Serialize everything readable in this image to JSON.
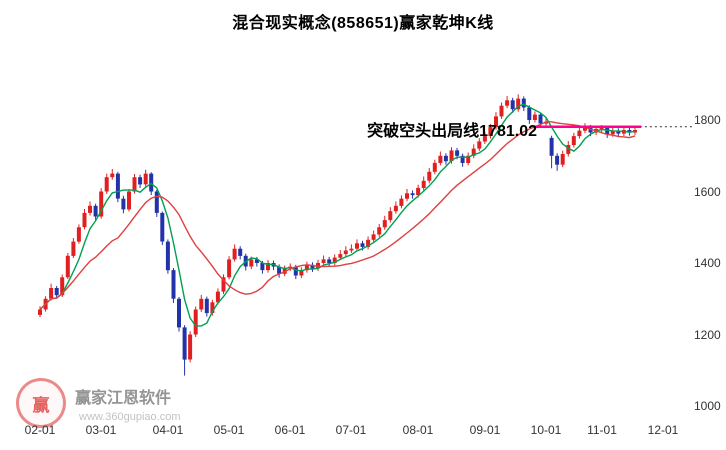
{
  "title": "混合现实概念(858651)赢家乾坤K线",
  "annotation": {
    "text": "突破空头出局线1781.02"
  },
  "watermark": {
    "logo_char": "赢",
    "brand": "赢家江恩软件",
    "url": "www.360gupiao.com"
  },
  "y_axis": {
    "labels": [
      1800,
      1600,
      1400,
      1200,
      1000
    ]
  },
  "x_axis": {
    "ticks": [
      [
        "02-01",
        0
      ],
      [
        "03-01",
        11
      ],
      [
        "04-01",
        23
      ],
      [
        "05-01",
        34
      ],
      [
        "06-01",
        45
      ],
      [
        "07-01",
        56
      ],
      [
        "08-01",
        68
      ],
      [
        "09-01",
        80
      ],
      [
        "10-01",
        91
      ],
      [
        "11-01",
        101
      ],
      [
        "12-01",
        112
      ]
    ]
  },
  "chart_data": {
    "type": "candlestick",
    "title": "混合现实概念(858651)赢家乾坤K线",
    "ylim": [
      1000,
      1880
    ],
    "ylabel": "",
    "xlabel": "",
    "grid": false,
    "colors": {
      "up": "#e02020",
      "down": "#2233aa"
    },
    "moving_averages": [
      {
        "name": "fast-ma",
        "period": 5,
        "color": "#00a050"
      },
      {
        "name": "slow-ma",
        "period": 15,
        "color": "#e04040"
      }
    ],
    "exit_line": {
      "label": "突破空头出局线",
      "value": 1781.02,
      "color": "#ff0090",
      "dotted_color": "#333333",
      "start_index": 89,
      "end_index": 107
    },
    "candles": [
      [
        1255,
        1279,
        1248,
        1270
      ],
      [
        1270,
        1307,
        1264,
        1300
      ],
      [
        1300,
        1342,
        1295,
        1330
      ],
      [
        1330,
        1336,
        1300,
        1310
      ],
      [
        1310,
        1368,
        1305,
        1360
      ],
      [
        1360,
        1428,
        1355,
        1420
      ],
      [
        1420,
        1470,
        1414,
        1460
      ],
      [
        1460,
        1508,
        1454,
        1500
      ],
      [
        1500,
        1551,
        1494,
        1540
      ],
      [
        1540,
        1572,
        1533,
        1560
      ],
      [
        1560,
        1566,
        1520,
        1530
      ],
      [
        1530,
        1609,
        1524,
        1600
      ],
      [
        1600,
        1650,
        1593,
        1640
      ],
      [
        1640,
        1663,
        1633,
        1650
      ],
      [
        1650,
        1655,
        1570,
        1580
      ],
      [
        1580,
        1588,
        1539,
        1550
      ],
      [
        1550,
        1607,
        1544,
        1600
      ],
      [
        1600,
        1649,
        1594,
        1640
      ],
      [
        1640,
        1647,
        1610,
        1620
      ],
      [
        1620,
        1661,
        1614,
        1650
      ],
      [
        1650,
        1654,
        1590,
        1600
      ],
      [
        1600,
        1605,
        1529,
        1540
      ],
      [
        1540,
        1544,
        1450,
        1460
      ],
      [
        1460,
        1466,
        1370,
        1380
      ],
      [
        1380,
        1386,
        1288,
        1300
      ],
      [
        1300,
        1305,
        1208,
        1220
      ],
      [
        1220,
        1226,
        1085,
        1130
      ],
      [
        1130,
        1209,
        1122,
        1200
      ],
      [
        1200,
        1278,
        1193,
        1270
      ],
      [
        1270,
        1311,
        1263,
        1300
      ],
      [
        1300,
        1306,
        1250,
        1260
      ],
      [
        1260,
        1297,
        1253,
        1290
      ],
      [
        1290,
        1329,
        1284,
        1320
      ],
      [
        1320,
        1368,
        1313,
        1360
      ],
      [
        1360,
        1419,
        1354,
        1410
      ],
      [
        1410,
        1452,
        1404,
        1440
      ],
      [
        1440,
        1447,
        1410,
        1420
      ],
      [
        1420,
        1426,
        1379,
        1390
      ],
      [
        1390,
        1418,
        1383,
        1410
      ],
      [
        1410,
        1417,
        1390,
        1400
      ],
      [
        1400,
        1406,
        1370,
        1380
      ],
      [
        1380,
        1408,
        1373,
        1400
      ],
      [
        1400,
        1407,
        1380,
        1390
      ],
      [
        1390,
        1396,
        1359,
        1370
      ],
      [
        1370,
        1393,
        1363,
        1385
      ],
      [
        1385,
        1399,
        1378,
        1390
      ],
      [
        1390,
        1395,
        1355,
        1365
      ],
      [
        1365,
        1388,
        1358,
        1380
      ],
      [
        1380,
        1404,
        1373,
        1395
      ],
      [
        1395,
        1402,
        1375,
        1385
      ],
      [
        1385,
        1409,
        1378,
        1400
      ],
      [
        1400,
        1421,
        1393,
        1410
      ],
      [
        1410,
        1417,
        1390,
        1400
      ],
      [
        1400,
        1424,
        1393,
        1415
      ],
      [
        1415,
        1436,
        1408,
        1425
      ],
      [
        1425,
        1447,
        1418,
        1435
      ],
      [
        1435,
        1452,
        1428,
        1440
      ],
      [
        1440,
        1466,
        1433,
        1455
      ],
      [
        1455,
        1462,
        1435,
        1445
      ],
      [
        1445,
        1474,
        1438,
        1465
      ],
      [
        1465,
        1491,
        1458,
        1480
      ],
      [
        1480,
        1509,
        1473,
        1500
      ],
      [
        1500,
        1532,
        1493,
        1520
      ],
      [
        1520,
        1556,
        1513,
        1545
      ],
      [
        1545,
        1572,
        1538,
        1560
      ],
      [
        1560,
        1589,
        1553,
        1580
      ],
      [
        1580,
        1607,
        1573,
        1595
      ],
      [
        1595,
        1603,
        1580,
        1590
      ],
      [
        1590,
        1619,
        1583,
        1610
      ],
      [
        1610,
        1642,
        1603,
        1630
      ],
      [
        1630,
        1666,
        1623,
        1655
      ],
      [
        1655,
        1689,
        1648,
        1680
      ],
      [
        1680,
        1712,
        1673,
        1700
      ],
      [
        1700,
        1707,
        1675,
        1685
      ],
      [
        1685,
        1724,
        1678,
        1715
      ],
      [
        1715,
        1722,
        1690,
        1700
      ],
      [
        1700,
        1706,
        1669,
        1680
      ],
      [
        1680,
        1709,
        1673,
        1700
      ],
      [
        1700,
        1732,
        1693,
        1720
      ],
      [
        1720,
        1749,
        1713,
        1740
      ],
      [
        1740,
        1767,
        1733,
        1755
      ],
      [
        1755,
        1789,
        1748,
        1780
      ],
      [
        1780,
        1822,
        1773,
        1810
      ],
      [
        1810,
        1849,
        1803,
        1840
      ],
      [
        1840,
        1867,
        1833,
        1855
      ],
      [
        1855,
        1862,
        1820,
        1830
      ],
      [
        1830,
        1872,
        1823,
        1860
      ],
      [
        1860,
        1866,
        1825,
        1835
      ],
      [
        1835,
        1841,
        1789,
        1800
      ],
      [
        1800,
        1824,
        1793,
        1815
      ],
      [
        1815,
        1821,
        1780,
        1790
      ],
      [
        1790,
        1806,
        1783,
        1795
      ],
      [
        1750,
        1756,
        1665,
        1700
      ],
      [
        1700,
        1707,
        1658,
        1675
      ],
      [
        1675,
        1714,
        1668,
        1705
      ],
      [
        1705,
        1741,
        1698,
        1730
      ],
      [
        1730,
        1764,
        1723,
        1755
      ],
      [
        1755,
        1782,
        1748,
        1770
      ],
      [
        1770,
        1791,
        1763,
        1780
      ],
      [
        1780,
        1786,
        1755,
        1765
      ],
      [
        1765,
        1784,
        1758,
        1775
      ],
      [
        1775,
        1786,
        1766,
        1778
      ],
      [
        1778,
        1784,
        1750,
        1760
      ],
      [
        1760,
        1779,
        1753,
        1770
      ],
      [
        1770,
        1777,
        1752,
        1762
      ],
      [
        1762,
        1781,
        1755,
        1772
      ],
      [
        1772,
        1778,
        1756,
        1765
      ],
      [
        1765,
        1780,
        1758,
        1772
      ]
    ]
  }
}
